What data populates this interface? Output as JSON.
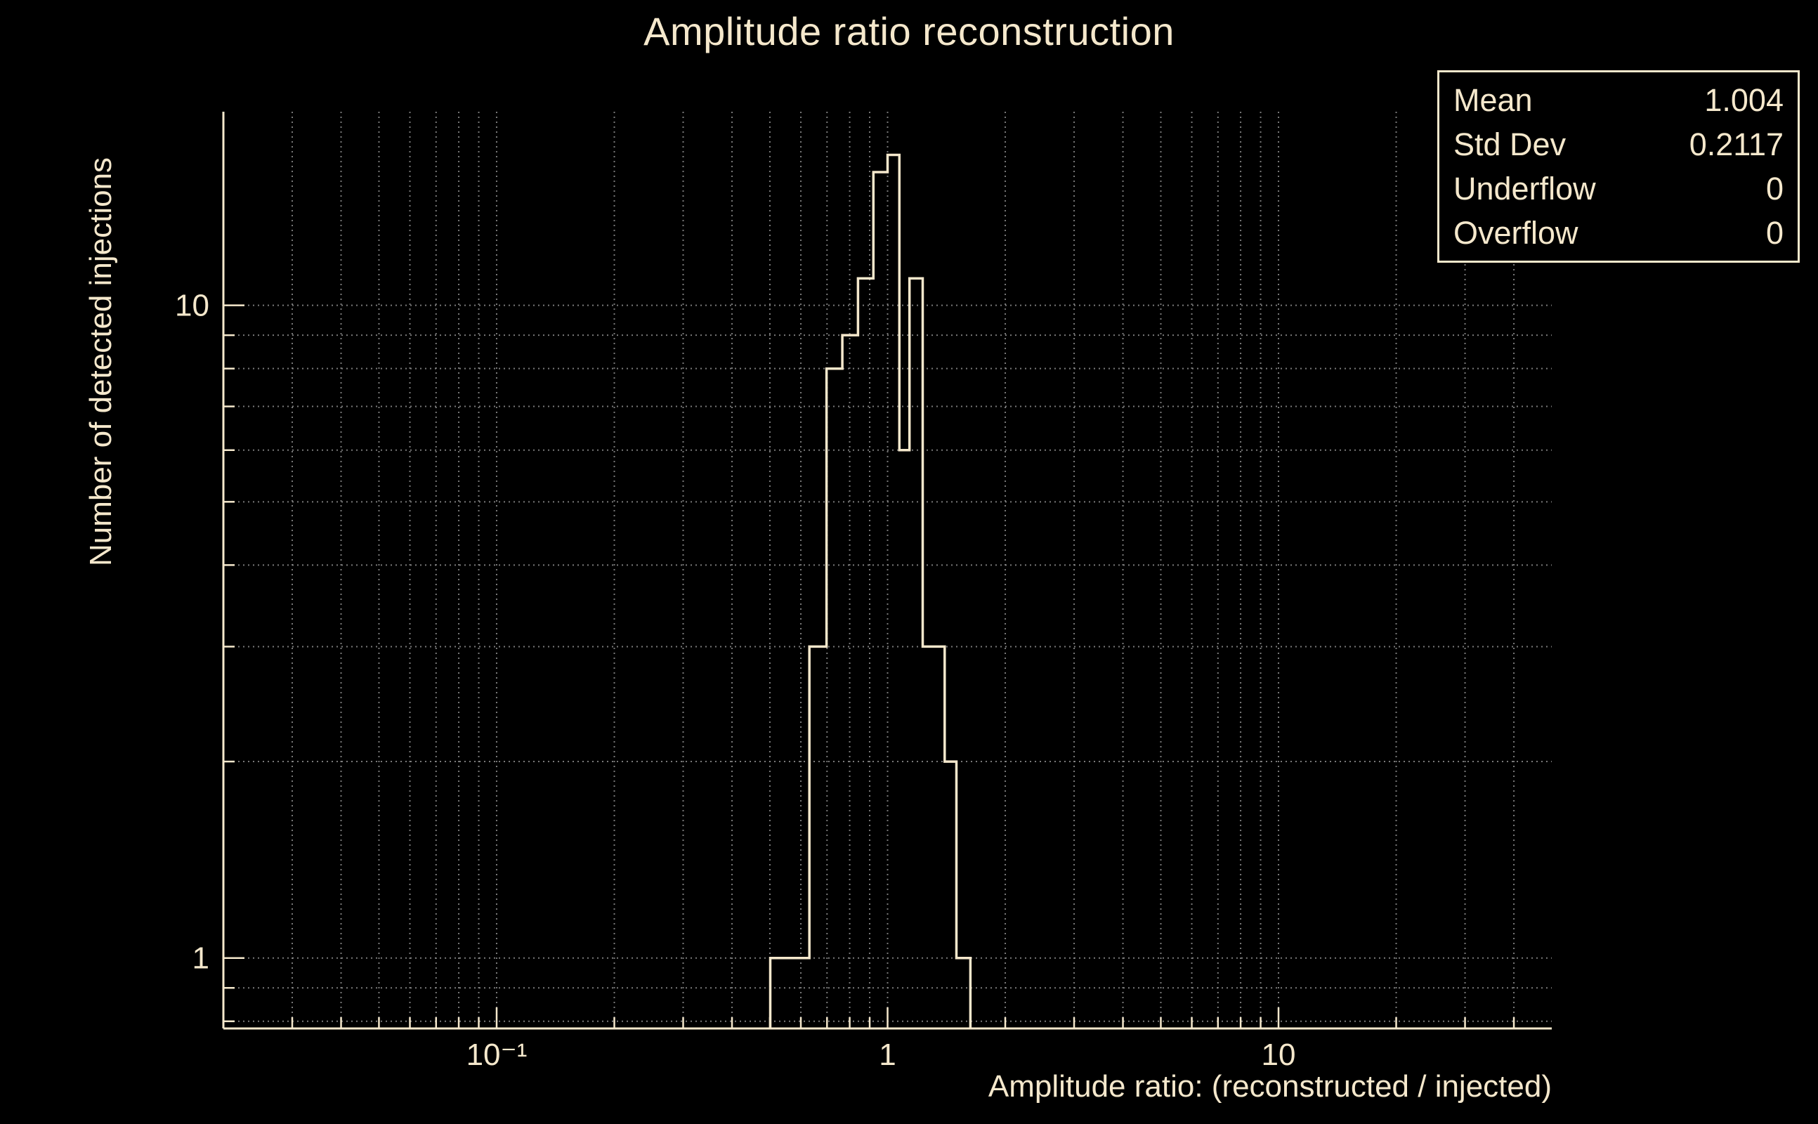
{
  "colors": {
    "background": "#000000",
    "foreground": "#f5e8cc",
    "grid": "#8f8f8f"
  },
  "stats_box": {
    "rows": [
      {
        "label": "Mean",
        "value": "1.004"
      },
      {
        "label": "Std Dev",
        "value": "0.2117"
      },
      {
        "label": "Underflow",
        "value": "0"
      },
      {
        "label": "Overflow",
        "value": "0"
      }
    ]
  },
  "chart_data": {
    "type": "bar",
    "subtype": "step-histogram",
    "title": "Amplitude ratio reconstruction",
    "xlabel": "Amplitude ratio: (reconstructed / injected)",
    "ylabel": "Number of detected injections",
    "xscale": "log",
    "yscale": "log",
    "xlim": [
      0.02,
      50
    ],
    "ylim": [
      0.78,
      19.8
    ],
    "grid": true,
    "legend_position": "none",
    "bin_edges": [
      0.501,
      0.631,
      0.698,
      0.766,
      0.84,
      0.92,
      1.0,
      1.072,
      1.138,
      1.23,
      1.4,
      1.5,
      1.629
    ],
    "counts": [
      1,
      3,
      8,
      9,
      11,
      16,
      17,
      6,
      11,
      3,
      2,
      1
    ],
    "x_ticks": [
      {
        "value": 0.1,
        "label": "10⁻¹"
      },
      {
        "value": 1,
        "label": "1"
      },
      {
        "value": 10,
        "label": "10"
      }
    ],
    "y_ticks": [
      {
        "value": 1,
        "label": "1"
      },
      {
        "value": 10,
        "label": "10"
      }
    ],
    "stats": {
      "mean": 1.004,
      "std_dev": 0.2117,
      "underflow": 0,
      "overflow": 0
    }
  }
}
